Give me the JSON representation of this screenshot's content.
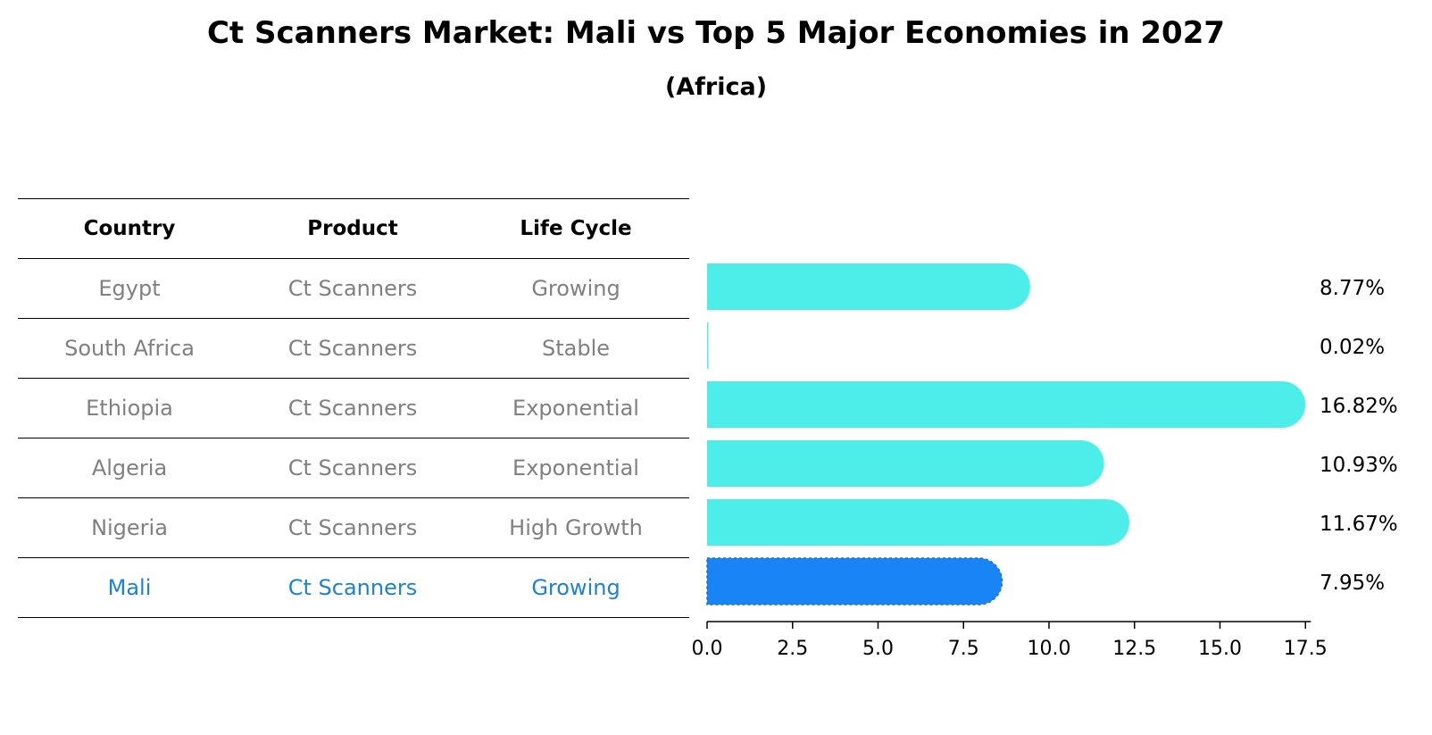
{
  "title": "Ct Scanners Market: Mali vs Top 5 Major Economies in 2027",
  "subtitle": "(Africa)",
  "table": {
    "headers": [
      "Country",
      "Product",
      "Life Cycle"
    ],
    "rows": [
      [
        "Egypt",
        "Ct Scanners",
        "Growing"
      ],
      [
        "South Africa",
        "Ct Scanners",
        "Stable"
      ],
      [
        "Ethiopia",
        "Ct Scanners",
        "Exponential"
      ],
      [
        "Algeria",
        "Ct Scanners",
        "Exponential"
      ],
      [
        "Nigeria",
        "Ct Scanners",
        "High Growth"
      ],
      [
        "Mali",
        "Ct Scanners",
        "Growing"
      ]
    ]
  },
  "colors": {
    "bar": "#4deeea",
    "highlight_bar": "#1984f5",
    "highlight_text": "#1a82d8",
    "muted_text": "#808080"
  },
  "chart_data": {
    "type": "bar",
    "orientation": "horizontal",
    "categories": [
      "Egypt",
      "South Africa",
      "Ethiopia",
      "Algeria",
      "Nigeria",
      "Mali"
    ],
    "values": [
      8.77,
      0.02,
      16.82,
      10.93,
      11.67,
      7.95
    ],
    "value_labels": [
      "8.77%",
      "0.02%",
      "16.82%",
      "10.93%",
      "11.67%",
      "7.95%"
    ],
    "highlight": "Mali",
    "xlim": [
      0,
      17.66
    ],
    "xticks": [
      0.0,
      2.5,
      5.0,
      7.5,
      10.0,
      12.5,
      15.0,
      17.5
    ],
    "xtick_labels": [
      "0.0",
      "2.5",
      "5.0",
      "7.5",
      "10.0",
      "12.5",
      "15.0",
      "17.5"
    ],
    "grid": false
  }
}
